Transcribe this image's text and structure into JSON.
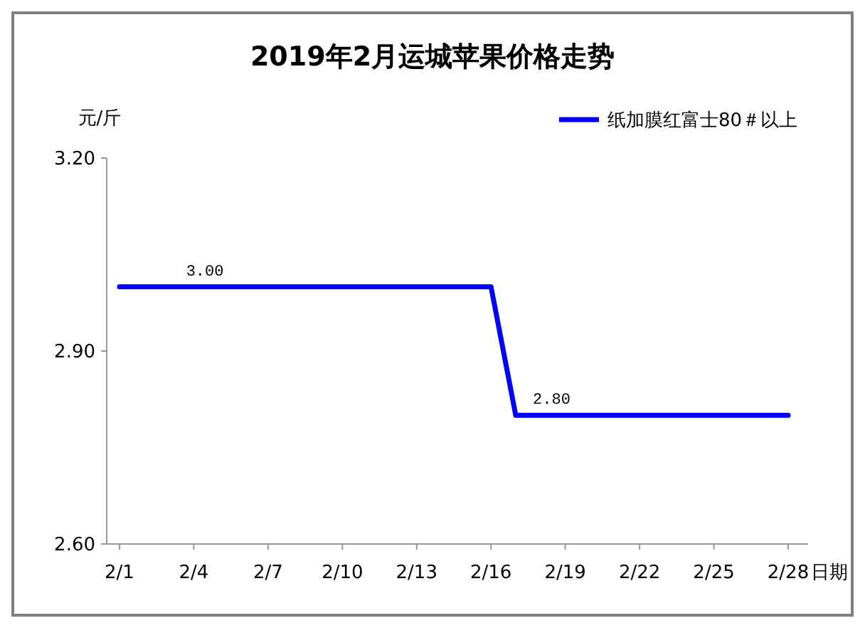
{
  "chart_data": {
    "type": "line",
    "title": "2019年2月运城苹果价格走势",
    "ylabel": "元/斤",
    "xlabel": "日期",
    "categories": [
      "2/1",
      null,
      null,
      "2/4",
      null,
      null,
      "2/7",
      null,
      null,
      "2/10",
      null,
      null,
      "2/13",
      null,
      null,
      "2/16",
      null,
      null,
      "2/19",
      null,
      null,
      "2/22",
      null,
      null,
      "2/25",
      null,
      null,
      "2/28"
    ],
    "series": [
      {
        "name": "纸加膜红富士80＃以上",
        "color": "#0000ff",
        "values": [
          3.0,
          3.0,
          3.0,
          3.0,
          3.0,
          3.0,
          3.0,
          3.0,
          3.0,
          3.0,
          3.0,
          3.0,
          3.0,
          3.0,
          3.0,
          3.0,
          2.8,
          2.8,
          2.8,
          2.8,
          2.8,
          2.8,
          2.8,
          2.8,
          2.8,
          2.8,
          2.8,
          2.8
        ],
        "value_labels": [
          null,
          null,
          "3.00",
          null,
          null,
          null,
          null,
          null,
          null,
          null,
          null,
          null,
          null,
          null,
          null,
          null,
          "2.80",
          null,
          null,
          null,
          null,
          null,
          null,
          null,
          null,
          null,
          null,
          null
        ]
      }
    ],
    "ylim": [
      2.6,
      3.2
    ],
    "yticks": [
      {
        "value": 2.6,
        "label": "2.60"
      },
      {
        "value": 2.9,
        "label": "2.90"
      },
      {
        "value": 3.2,
        "label": "3.20"
      }
    ],
    "grid": false,
    "legend": "top right",
    "line_style": "solid"
  }
}
